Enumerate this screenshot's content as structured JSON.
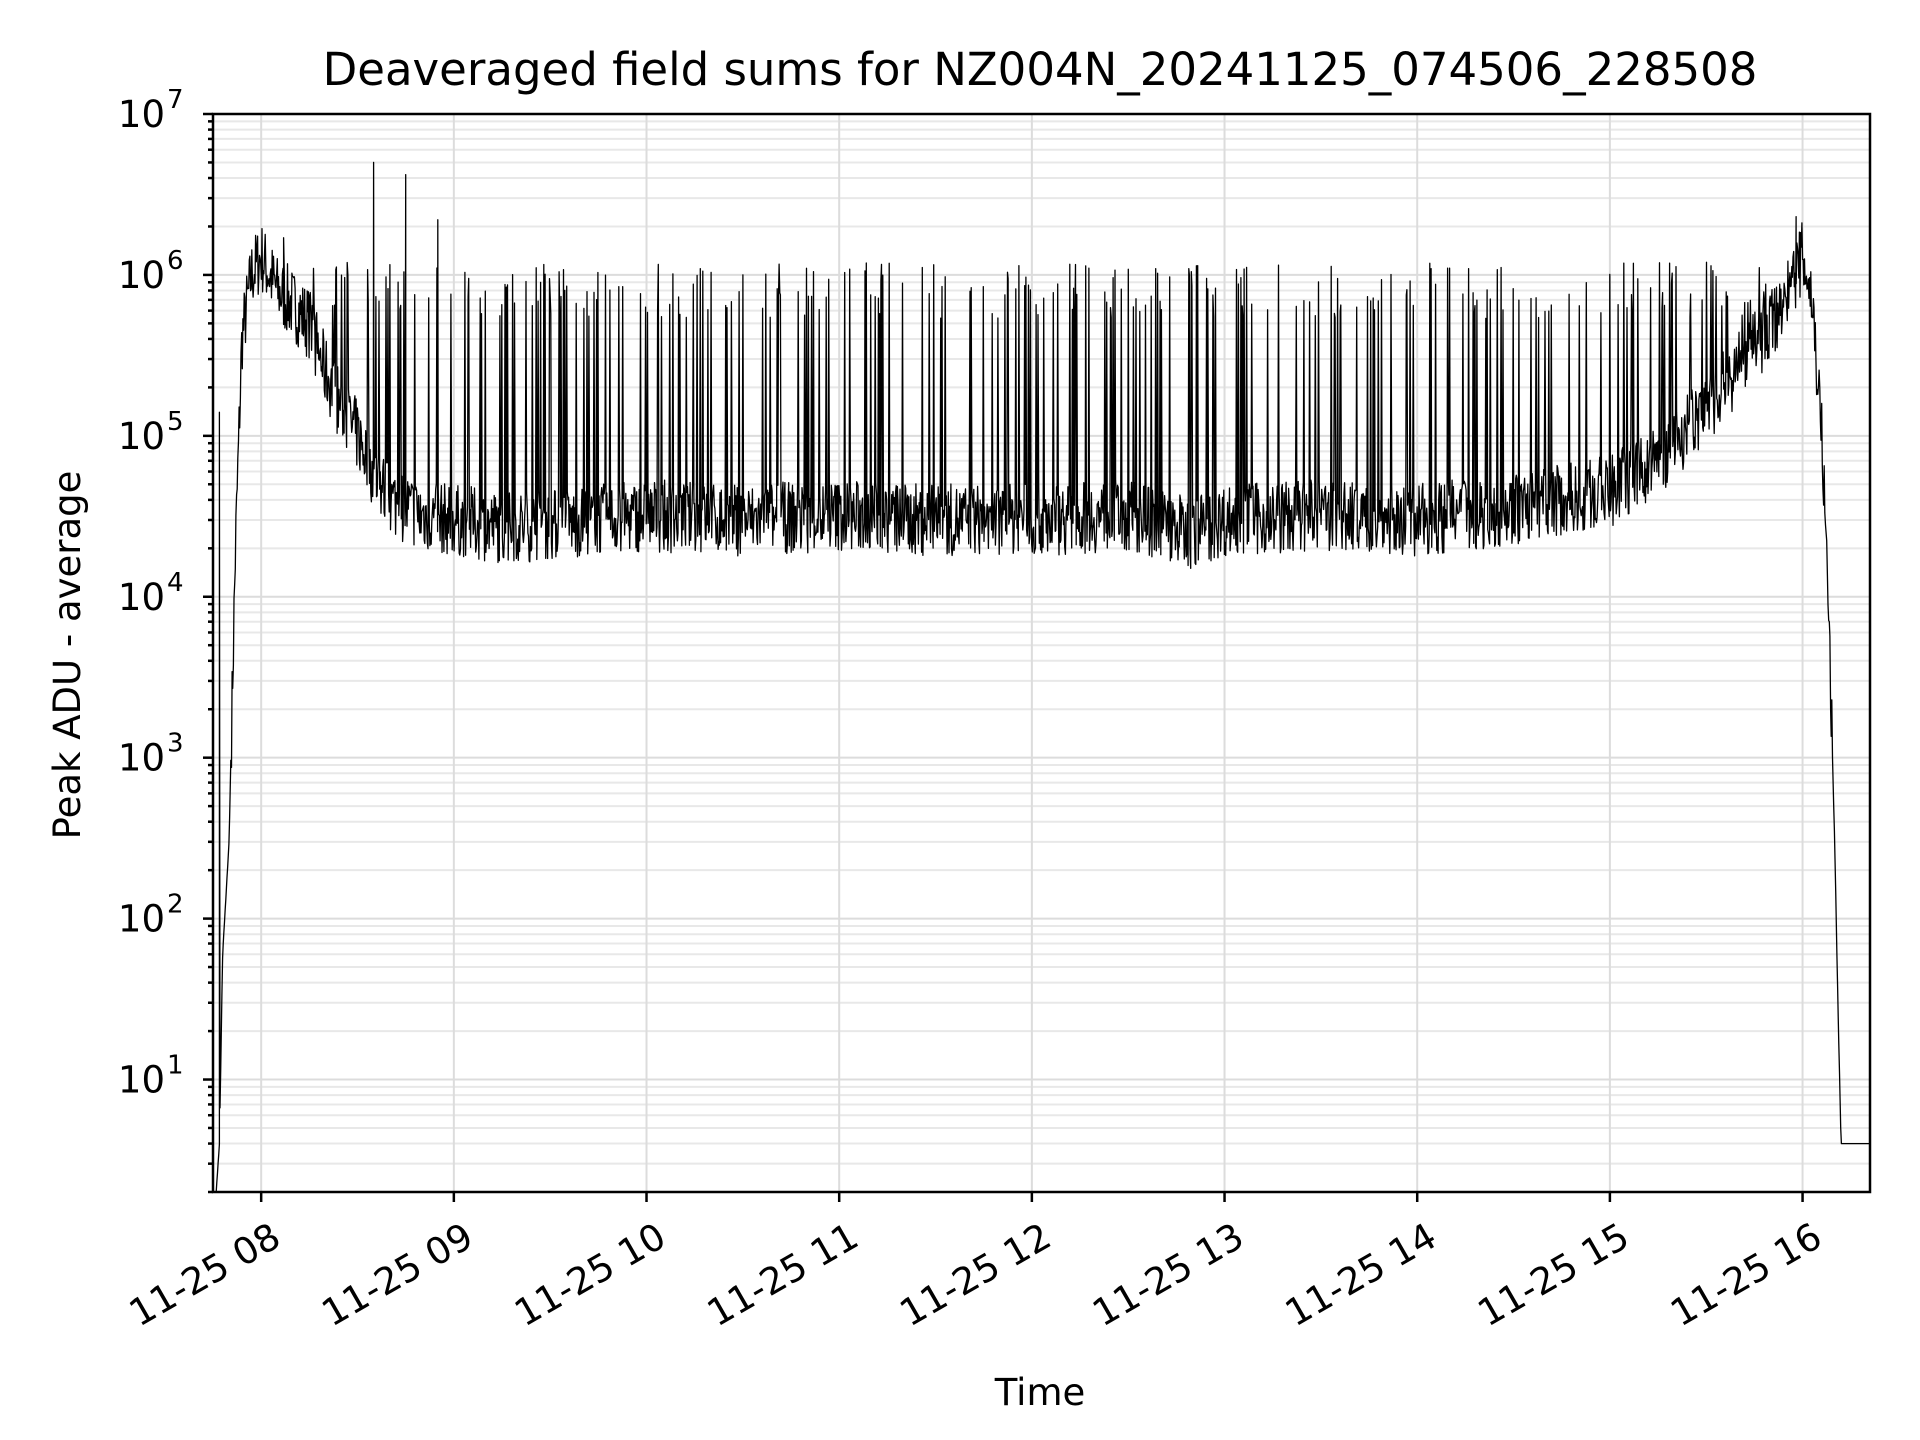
{
  "chart_data": {
    "type": "line",
    "title": "Deaveraged field sums for NZ004N_20241125_074506_228508",
    "xlabel": "Time",
    "ylabel": "Peak ADU - average",
    "xscale": "time",
    "yscale": "log",
    "xlim": [
      "2024-11-25 07:45",
      "2024-11-25 16:21"
    ],
    "ylim": [
      2,
      10000000
    ],
    "grid": true,
    "legend": "none",
    "line_color": "#000000",
    "x_ticks": [
      {
        "time": "2024-11-25 08:00",
        "label": "11-25 08"
      },
      {
        "time": "2024-11-25 09:00",
        "label": "11-25 09"
      },
      {
        "time": "2024-11-25 10:00",
        "label": "11-25 10"
      },
      {
        "time": "2024-11-25 11:00",
        "label": "11-25 11"
      },
      {
        "time": "2024-11-25 12:00",
        "label": "11-25 12"
      },
      {
        "time": "2024-11-25 13:00",
        "label": "11-25 13"
      },
      {
        "time": "2024-11-25 14:00",
        "label": "11-25 14"
      },
      {
        "time": "2024-11-25 15:00",
        "label": "11-25 15"
      },
      {
        "time": "2024-11-25 16:00",
        "label": "11-25 16"
      }
    ],
    "y_ticks": [
      {
        "value": 10,
        "base": "10",
        "exp": "1"
      },
      {
        "value": 100,
        "base": "10",
        "exp": "2"
      },
      {
        "value": 1000,
        "base": "10",
        "exp": "3"
      },
      {
        "value": 10000,
        "base": "10",
        "exp": "4"
      },
      {
        "value": 100000,
        "base": "10",
        "exp": "5"
      },
      {
        "value": 1000000,
        "base": "10",
        "exp": "6"
      },
      {
        "value": 10000000,
        "base": "10",
        "exp": "7"
      }
    ],
    "series": [
      {
        "baseline": [
          [
            "2024-11-25 07:46",
            2
          ],
          [
            "2024-11-25 07:47",
            4
          ],
          [
            "2024-11-25 07:48",
            60
          ],
          [
            "2024-11-25 07:50",
            300
          ],
          [
            "2024-11-25 07:52",
            20000
          ],
          [
            "2024-11-25 07:54",
            400000
          ],
          [
            "2024-11-25 07:57",
            1000000
          ],
          [
            "2024-11-25 08:00",
            1300000
          ],
          [
            "2024-11-25 08:05",
            800000
          ],
          [
            "2024-11-25 08:10",
            650000
          ],
          [
            "2024-11-25 08:15",
            500000
          ],
          [
            "2024-11-25 08:20",
            250000
          ],
          [
            "2024-11-25 08:25",
            150000
          ],
          [
            "2024-11-25 08:30",
            100000
          ],
          [
            "2024-11-25 08:35",
            60000
          ],
          [
            "2024-11-25 08:40",
            40000
          ],
          [
            "2024-11-25 08:50",
            32000
          ],
          [
            "2024-11-25 09:00",
            30000
          ],
          [
            "2024-11-25 09:15",
            27000
          ],
          [
            "2024-11-25 09:30",
            28000
          ],
          [
            "2024-11-25 10:00",
            32000
          ],
          [
            "2024-11-25 10:30",
            30000
          ],
          [
            "2024-11-25 11:00",
            32000
          ],
          [
            "2024-11-25 11:30",
            30000
          ],
          [
            "2024-11-25 12:00",
            30000
          ],
          [
            "2024-11-25 12:30",
            32000
          ],
          [
            "2024-11-25 12:50",
            25000
          ],
          [
            "2024-11-25 13:00",
            30000
          ],
          [
            "2024-11-25 13:30",
            32000
          ],
          [
            "2024-11-25 14:00",
            30000
          ],
          [
            "2024-11-25 14:30",
            35000
          ],
          [
            "2024-11-25 14:45",
            40000
          ],
          [
            "2024-11-25 15:00",
            45000
          ],
          [
            "2024-11-25 15:15",
            70000
          ],
          [
            "2024-11-25 15:30",
            150000
          ],
          [
            "2024-11-25 15:45",
            350000
          ],
          [
            "2024-11-25 15:55",
            700000
          ],
          [
            "2024-11-25 16:00",
            1300000
          ],
          [
            "2024-11-25 16:03",
            700000
          ],
          [
            "2024-11-25 16:06",
            100000
          ],
          [
            "2024-11-25 16:08",
            10000
          ],
          [
            "2024-11-25 16:10",
            300
          ],
          [
            "2024-11-25 16:11",
            30
          ],
          [
            "2024-11-25 16:12",
            4
          ],
          [
            "2024-11-25 16:21",
            4
          ]
        ],
        "spike_start": "2024-11-25 08:15",
        "spike_end": "2024-11-25 15:57",
        "spike_peak": 1200000,
        "outliers": [
          [
            "2024-11-25 07:47",
            140000
          ],
          [
            "2024-11-25 08:07",
            1700000
          ],
          [
            "2024-11-25 08:35",
            5000000
          ],
          [
            "2024-11-25 08:45",
            4200000
          ],
          [
            "2024-11-25 08:55",
            2200000
          ],
          [
            "2024-11-25 15:58",
            2300000
          ]
        ]
      }
    ]
  }
}
